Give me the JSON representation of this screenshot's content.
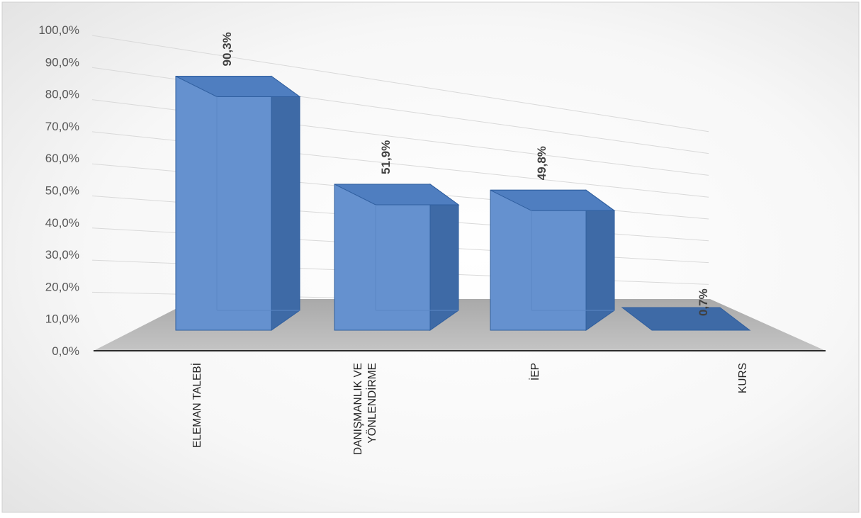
{
  "chart_data": {
    "type": "bar",
    "style": "3d-column",
    "categories": [
      "ELEMAN TALEBİ",
      "DANIŞMANLIK VE YÖNLENDİRME",
      "İEP",
      "KURS"
    ],
    "category_lines": [
      [
        "ELEMAN TALEBİ"
      ],
      [
        "DANIŞMANLIK VE",
        "YÖNLENDİRME"
      ],
      [
        "İEP"
      ],
      [
        "KURS"
      ]
    ],
    "values": [
      90.3,
      51.9,
      49.8,
      0.7
    ],
    "data_labels": [
      "90,3%",
      "51,9%",
      "49,8%",
      "0,7%"
    ],
    "y_ticks": [
      "0,0%",
      "10,0%",
      "20,0%",
      "30,0%",
      "40,0%",
      "50,0%",
      "60,0%",
      "70,0%",
      "80,0%",
      "90,0%",
      "100,0%"
    ],
    "ylim": [
      0,
      100
    ],
    "grid": true,
    "legend": "none",
    "title": "",
    "xlabel": "",
    "ylabel": "",
    "colors": {
      "bar_front": "#6591cf",
      "bar_side": "#3e6aa6",
      "bar_top": "#4f7ec0",
      "bar_edge": "#2f5e9e",
      "floor": "#b9b9b9",
      "grid": "#d9d9d9",
      "axis_text": "#595959",
      "label_text": "#404040",
      "background": "#f2f2f2"
    }
  }
}
